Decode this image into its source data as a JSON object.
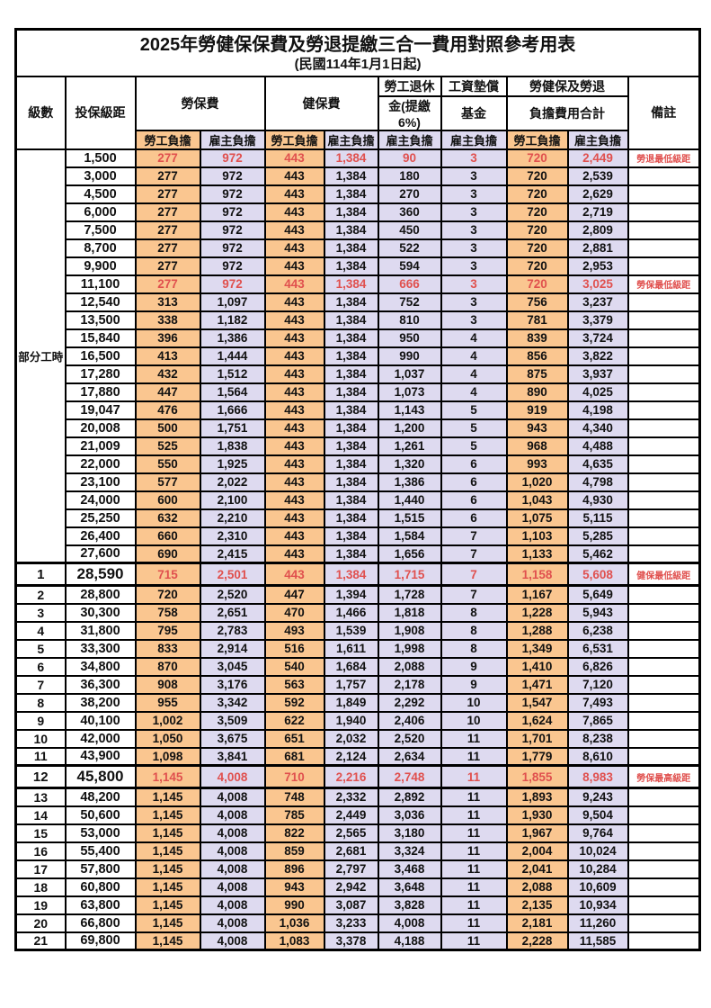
{
  "colors": {
    "employee_column_bg": "#FAC690",
    "employer_column_bg": "#DEDAF0",
    "highlight_text": "#E0504E",
    "border": "#000000"
  },
  "table": {
    "title": "2025年勞健保保費及勞退提繳三合一費用對照參考用表",
    "subtitle": "(民國114年1月1日起)",
    "headers": {
      "level": "級數",
      "bracket": "投保級距",
      "labor_group": "勞保費",
      "health_group": "健保費",
      "pension_line1": "勞工退休",
      "pension_line2": "金(提繳6%)",
      "wage_fund_line1": "工資墊償",
      "wage_fund_line2": "基金",
      "total_line1": "勞健保及勞退",
      "total_line2": "負擔費用合計",
      "remark": "備註",
      "employee_share": "勞工負擔",
      "employer_share": "雇主負擔"
    },
    "part_time_label": "部分工時",
    "rows": [
      [
        "",
        "1,500",
        "277",
        "972",
        "443",
        "1,384",
        "90",
        "3",
        "720",
        "2,449",
        "勞退最低級距"
      ],
      [
        "",
        "3,000",
        "277",
        "972",
        "443",
        "1,384",
        "180",
        "3",
        "720",
        "2,539",
        ""
      ],
      [
        "",
        "4,500",
        "277",
        "972",
        "443",
        "1,384",
        "270",
        "3",
        "720",
        "2,629",
        ""
      ],
      [
        "",
        "6,000",
        "277",
        "972",
        "443",
        "1,384",
        "360",
        "3",
        "720",
        "2,719",
        ""
      ],
      [
        "",
        "7,500",
        "277",
        "972",
        "443",
        "1,384",
        "450",
        "3",
        "720",
        "2,809",
        ""
      ],
      [
        "",
        "8,700",
        "277",
        "972",
        "443",
        "1,384",
        "522",
        "3",
        "720",
        "2,881",
        ""
      ],
      [
        "",
        "9,900",
        "277",
        "972",
        "443",
        "1,384",
        "594",
        "3",
        "720",
        "2,953",
        ""
      ],
      [
        "",
        "11,100",
        "277",
        "972",
        "443",
        "1,384",
        "666",
        "3",
        "720",
        "3,025",
        "勞保最低級距"
      ],
      [
        "",
        "12,540",
        "313",
        "1,097",
        "443",
        "1,384",
        "752",
        "3",
        "756",
        "3,237",
        ""
      ],
      [
        "",
        "13,500",
        "338",
        "1,182",
        "443",
        "1,384",
        "810",
        "3",
        "781",
        "3,379",
        ""
      ],
      [
        "",
        "15,840",
        "396",
        "1,386",
        "443",
        "1,384",
        "950",
        "4",
        "839",
        "3,724",
        ""
      ],
      [
        "",
        "16,500",
        "413",
        "1,444",
        "443",
        "1,384",
        "990",
        "4",
        "856",
        "3,822",
        ""
      ],
      [
        "",
        "17,280",
        "432",
        "1,512",
        "443",
        "1,384",
        "1,037",
        "4",
        "875",
        "3,937",
        ""
      ],
      [
        "",
        "17,880",
        "447",
        "1,564",
        "443",
        "1,384",
        "1,073",
        "4",
        "890",
        "4,025",
        ""
      ],
      [
        "",
        "19,047",
        "476",
        "1,666",
        "443",
        "1,384",
        "1,143",
        "5",
        "919",
        "4,198",
        ""
      ],
      [
        "",
        "20,008",
        "500",
        "1,751",
        "443",
        "1,384",
        "1,200",
        "5",
        "943",
        "4,340",
        ""
      ],
      [
        "",
        "21,009",
        "525",
        "1,838",
        "443",
        "1,384",
        "1,261",
        "5",
        "968",
        "4,488",
        ""
      ],
      [
        "",
        "22,000",
        "550",
        "1,925",
        "443",
        "1,384",
        "1,320",
        "6",
        "993",
        "4,635",
        ""
      ],
      [
        "",
        "23,100",
        "577",
        "2,022",
        "443",
        "1,384",
        "1,386",
        "6",
        "1,020",
        "4,798",
        ""
      ],
      [
        "",
        "24,000",
        "600",
        "2,100",
        "443",
        "1,384",
        "1,440",
        "6",
        "1,043",
        "4,930",
        ""
      ],
      [
        "",
        "25,250",
        "632",
        "2,210",
        "443",
        "1,384",
        "1,515",
        "6",
        "1,075",
        "5,115",
        ""
      ],
      [
        "",
        "26,400",
        "660",
        "2,310",
        "443",
        "1,384",
        "1,584",
        "7",
        "1,103",
        "5,285",
        ""
      ],
      [
        "",
        "27,600",
        "690",
        "2,415",
        "443",
        "1,384",
        "1,656",
        "7",
        "1,133",
        "5,462",
        ""
      ],
      [
        "1",
        "28,590",
        "715",
        "2,501",
        "443",
        "1,384",
        "1,715",
        "7",
        "1,158",
        "5,608",
        "健保最低級距"
      ],
      [
        "2",
        "28,800",
        "720",
        "2,520",
        "447",
        "1,394",
        "1,728",
        "7",
        "1,167",
        "5,649",
        ""
      ],
      [
        "3",
        "30,300",
        "758",
        "2,651",
        "470",
        "1,466",
        "1,818",
        "8",
        "1,228",
        "5,943",
        ""
      ],
      [
        "4",
        "31,800",
        "795",
        "2,783",
        "493",
        "1,539",
        "1,908",
        "8",
        "1,288",
        "6,238",
        ""
      ],
      [
        "5",
        "33,300",
        "833",
        "2,914",
        "516",
        "1,611",
        "1,998",
        "8",
        "1,349",
        "6,531",
        ""
      ],
      [
        "6",
        "34,800",
        "870",
        "3,045",
        "540",
        "1,684",
        "2,088",
        "9",
        "1,410",
        "6,826",
        ""
      ],
      [
        "7",
        "36,300",
        "908",
        "3,176",
        "563",
        "1,757",
        "2,178",
        "9",
        "1,471",
        "7,120",
        ""
      ],
      [
        "8",
        "38,200",
        "955",
        "3,342",
        "592",
        "1,849",
        "2,292",
        "10",
        "1,547",
        "7,493",
        ""
      ],
      [
        "9",
        "40,100",
        "1,002",
        "3,509",
        "622",
        "1,940",
        "2,406",
        "10",
        "1,624",
        "7,865",
        ""
      ],
      [
        "10",
        "42,000",
        "1,050",
        "3,675",
        "651",
        "2,032",
        "2,520",
        "11",
        "1,701",
        "8,238",
        ""
      ],
      [
        "11",
        "43,900",
        "1,098",
        "3,841",
        "681",
        "2,124",
        "2,634",
        "11",
        "1,779",
        "8,610",
        ""
      ],
      [
        "12",
        "45,800",
        "1,145",
        "4,008",
        "710",
        "2,216",
        "2,748",
        "11",
        "1,855",
        "8,983",
        "勞保最高級距"
      ],
      [
        "13",
        "48,200",
        "1,145",
        "4,008",
        "748",
        "2,332",
        "2,892",
        "11",
        "1,893",
        "9,243",
        ""
      ],
      [
        "14",
        "50,600",
        "1,145",
        "4,008",
        "785",
        "2,449",
        "3,036",
        "11",
        "1,930",
        "9,504",
        ""
      ],
      [
        "15",
        "53,000",
        "1,145",
        "4,008",
        "822",
        "2,565",
        "3,180",
        "11",
        "1,967",
        "9,764",
        ""
      ],
      [
        "16",
        "55,400",
        "1,145",
        "4,008",
        "859",
        "2,681",
        "3,324",
        "11",
        "2,004",
        "10,024",
        ""
      ],
      [
        "17",
        "57,800",
        "1,145",
        "4,008",
        "896",
        "2,797",
        "3,468",
        "11",
        "2,041",
        "10,284",
        ""
      ],
      [
        "18",
        "60,800",
        "1,145",
        "4,008",
        "943",
        "2,942",
        "3,648",
        "11",
        "2,088",
        "10,609",
        ""
      ],
      [
        "19",
        "63,800",
        "1,145",
        "4,008",
        "990",
        "3,087",
        "3,828",
        "11",
        "2,135",
        "10,934",
        ""
      ],
      [
        "20",
        "66,800",
        "1,145",
        "4,008",
        "1,036",
        "3,233",
        "4,008",
        "11",
        "2,181",
        "11,260",
        ""
      ],
      [
        "21",
        "69,800",
        "1,145",
        "4,008",
        "1,083",
        "3,378",
        "4,188",
        "11",
        "2,228",
        "11,585",
        ""
      ]
    ]
  }
}
